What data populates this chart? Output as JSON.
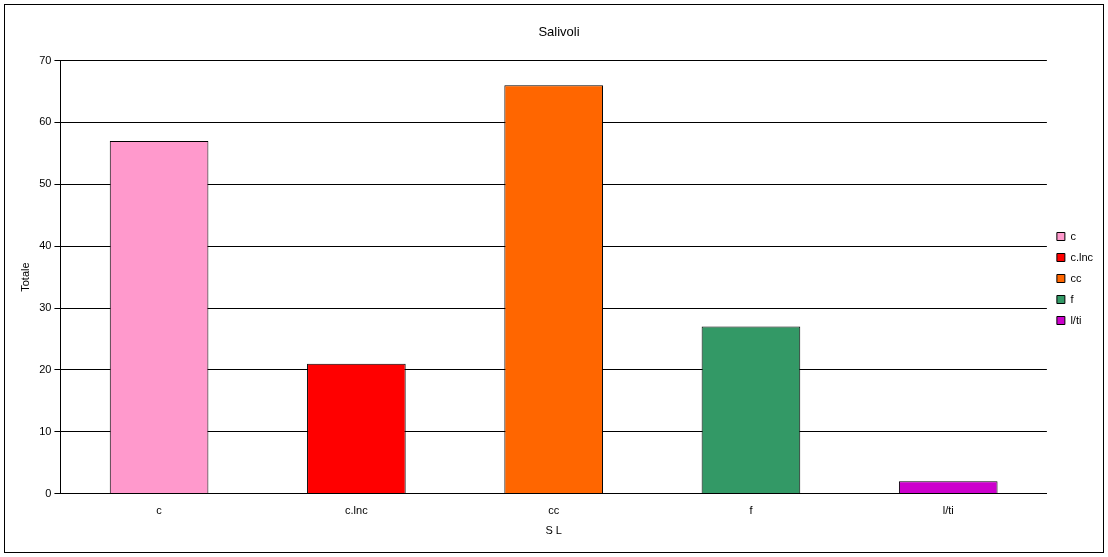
{
  "chart_data": {
    "type": "bar",
    "title": "Salivoli",
    "xlabel": "S L",
    "ylabel": "Totale",
    "categories": [
      "c",
      "c.lnc",
      "cc",
      "f",
      "l/ti"
    ],
    "series": [
      {
        "name": "c",
        "color": "#ff99cc",
        "values": [
          57,
          null,
          null,
          null,
          null
        ]
      },
      {
        "name": "c.lnc",
        "color": "#ff0000",
        "values": [
          null,
          21,
          null,
          null,
          null
        ]
      },
      {
        "name": "cc",
        "color": "#ff6600",
        "values": [
          null,
          null,
          66,
          null,
          null
        ]
      },
      {
        "name": "f",
        "color": "#339966",
        "values": [
          null,
          null,
          null,
          27,
          null
        ]
      },
      {
        "name": "l/ti",
        "color": "#cc00cc",
        "values": [
          null,
          null,
          null,
          null,
          2
        ]
      }
    ],
    "ylim": [
      0,
      70
    ],
    "yticks": [
      0,
      10,
      20,
      30,
      40,
      50,
      60,
      70
    ],
    "grid": "y",
    "legend": "right"
  }
}
